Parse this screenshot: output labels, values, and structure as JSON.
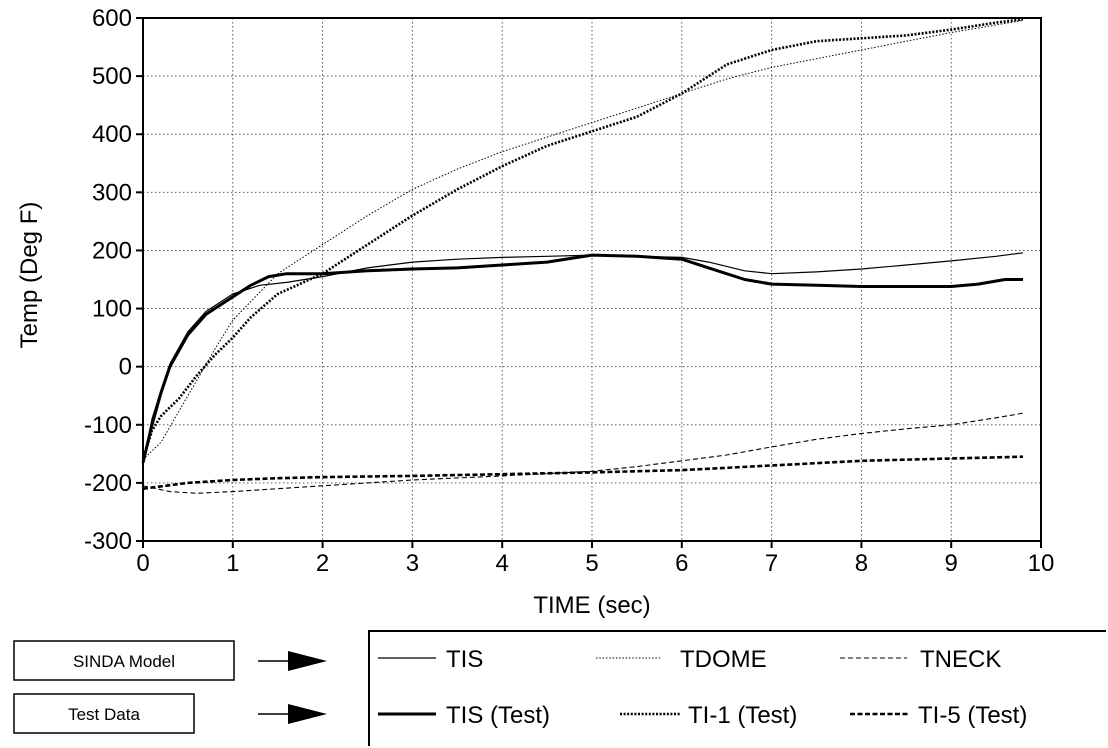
{
  "chart_data": {
    "type": "line",
    "xlabel": "TIME (sec)",
    "ylabel": "Temp (Deg F)",
    "xlim": [
      0,
      10
    ],
    "ylim": [
      -300,
      600
    ],
    "xticks": [
      0,
      1,
      2,
      3,
      4,
      5,
      6,
      7,
      8,
      9,
      10
    ],
    "yticks": [
      -300,
      -200,
      -100,
      0,
      100,
      200,
      300,
      400,
      500,
      600
    ],
    "grid": true,
    "legend_placement": "bottom",
    "series": [
      {
        "name": "TIS",
        "group": "model",
        "style": "thin-solid",
        "x": [
          0,
          0.1,
          0.2,
          0.3,
          0.5,
          0.7,
          1.0,
          1.3,
          1.6,
          2.0,
          2.5,
          3.0,
          3.5,
          4.0,
          4.5,
          5.0,
          5.5,
          6.0,
          6.3,
          6.7,
          7.0,
          7.5,
          8.0,
          8.5,
          9.0,
          9.5,
          9.8
        ],
        "y": [
          -165,
          -90,
          -40,
          5,
          60,
          95,
          125,
          140,
          145,
          155,
          170,
          180,
          185,
          188,
          190,
          192,
          190,
          188,
          180,
          165,
          160,
          163,
          168,
          175,
          182,
          190,
          196
        ]
      },
      {
        "name": "TDOME",
        "group": "model",
        "style": "thin-dotted",
        "x": [
          0,
          0.2,
          0.5,
          0.8,
          1.0,
          1.5,
          2.0,
          2.5,
          3.0,
          3.5,
          4.0,
          4.5,
          5.0,
          5.5,
          6.0,
          6.5,
          7.0,
          7.5,
          8.0,
          8.5,
          9.0,
          9.5,
          9.8
        ],
        "y": [
          -160,
          -130,
          -50,
          30,
          80,
          160,
          210,
          260,
          305,
          340,
          370,
          395,
          420,
          445,
          470,
          495,
          515,
          530,
          545,
          560,
          575,
          588,
          596
        ]
      },
      {
        "name": "TNECK",
        "group": "model",
        "style": "thin-dashed",
        "x": [
          0,
          0.3,
          0.6,
          1.0,
          1.5,
          2.0,
          3.0,
          4.0,
          5.0,
          5.5,
          6.0,
          6.5,
          7.0,
          7.5,
          8.0,
          8.5,
          9.0,
          9.5,
          9.8
        ],
        "y": [
          -205,
          -215,
          -218,
          -215,
          -210,
          -205,
          -195,
          -188,
          -180,
          -172,
          -162,
          -152,
          -138,
          -125,
          -115,
          -107,
          -100,
          -88,
          -80
        ]
      },
      {
        "name": "TIS (Test)",
        "group": "test",
        "style": "thick-solid",
        "x": [
          0,
          0.1,
          0.2,
          0.3,
          0.5,
          0.7,
          1.0,
          1.2,
          1.4,
          1.6,
          2.0,
          2.5,
          3.0,
          3.5,
          4.0,
          4.5,
          5.0,
          5.5,
          6.0,
          6.3,
          6.7,
          7.0,
          7.5,
          8.0,
          8.5,
          9.0,
          9.3,
          9.6,
          9.8
        ],
        "y": [
          -165,
          -100,
          -45,
          0,
          55,
          90,
          120,
          140,
          155,
          160,
          160,
          165,
          168,
          170,
          175,
          180,
          192,
          190,
          185,
          170,
          150,
          142,
          140,
          138,
          138,
          138,
          142,
          150,
          150
        ]
      },
      {
        "name": "TI-1 (Test)",
        "group": "test",
        "style": "thick-dotted",
        "x": [
          0,
          0.1,
          0.2,
          0.4,
          0.6,
          0.8,
          1.0,
          1.2,
          1.5,
          2.0,
          2.5,
          3.0,
          3.5,
          4.0,
          4.5,
          5.0,
          5.5,
          6.0,
          6.5,
          7.0,
          7.5,
          8.0,
          8.5,
          9.0,
          9.5,
          9.8
        ],
        "y": [
          -160,
          -110,
          -85,
          -55,
          -15,
          20,
          50,
          85,
          125,
          160,
          210,
          260,
          305,
          345,
          380,
          405,
          430,
          470,
          520,
          545,
          560,
          565,
          570,
          580,
          592,
          598
        ]
      },
      {
        "name": "TI-5 (Test)",
        "group": "test",
        "style": "thick-dashed",
        "x": [
          0,
          0.5,
          1.0,
          1.5,
          2.0,
          3.0,
          4.0,
          5.0,
          6.0,
          7.0,
          8.0,
          9.0,
          9.8
        ],
        "y": [
          -210,
          -200,
          -195,
          -192,
          -190,
          -188,
          -185,
          -182,
          -178,
          -170,
          -162,
          -158,
          -155
        ]
      }
    ]
  },
  "legend": {
    "model_box_label": "SINDA Model",
    "test_box_label": "Test Data",
    "model_entries": [
      "TIS",
      "TDOME",
      "TNECK"
    ],
    "test_entries": [
      "TIS (Test)",
      "TI-1 (Test)",
      "TI-5 (Test)"
    ]
  }
}
